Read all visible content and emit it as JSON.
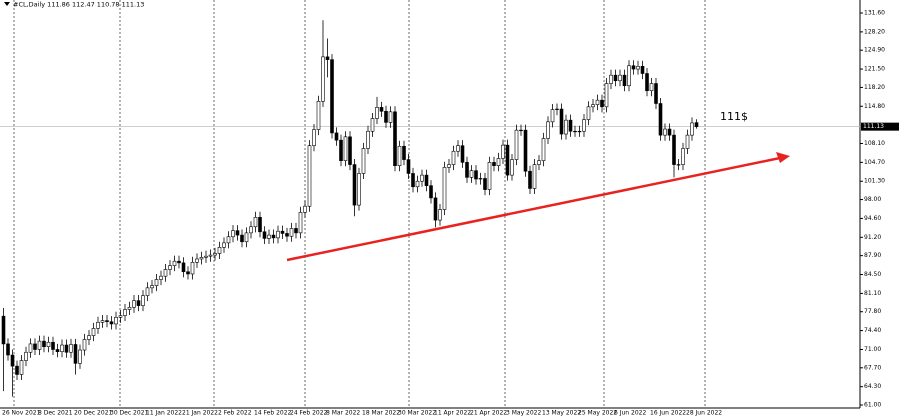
{
  "chart_data": {
    "type": "candlestick",
    "title": "#CL,Daily  111.86 112.47 110.78 111.13",
    "annotation": "111$",
    "last_price": 111.13,
    "color": "#000000",
    "up_fill": "#ffffff",
    "down_fill": "#000000",
    "line_color": "#bdbdbd",
    "annotation_color": "#e8231f",
    "ylim": [
      60.46,
      133.94
    ],
    "yticks": [
      {
        "value": 131.6,
        "label": "131.60"
      },
      {
        "value": 128.2,
        "label": "128.20"
      },
      {
        "value": 124.9,
        "label": "124.90"
      },
      {
        "value": 121.5,
        "label": "121.50"
      },
      {
        "value": 118.2,
        "label": "118.20"
      },
      {
        "value": 114.8,
        "label": "114.80"
      },
      {
        "value": 108.1,
        "label": "108.10"
      },
      {
        "value": 104.7,
        "label": "104.70"
      },
      {
        "value": 101.3,
        "label": "101.30"
      },
      {
        "value": 98,
        "label": "98.00"
      },
      {
        "value": 94.6,
        "label": "94.60"
      },
      {
        "value": 91.2,
        "label": "91.20"
      },
      {
        "value": 87.9,
        "label": "87.90"
      },
      {
        "value": 84.5,
        "label": "84.50"
      },
      {
        "value": 81.1,
        "label": "81.10"
      },
      {
        "value": 77.8,
        "label": "77.80"
      },
      {
        "value": 74.4,
        "label": "74.40"
      },
      {
        "value": 71,
        "label": "71.00"
      },
      {
        "value": 67.7,
        "label": "67.70"
      },
      {
        "value": 64.3,
        "label": "64.30"
      },
      {
        "value": 61,
        "label": "61.00"
      }
    ],
    "categories": [
      "26 Nov 2021",
      null,
      null,
      null,
      null,
      null,
      null,
      null,
      "8 Dec 2021",
      null,
      null,
      null,
      null,
      null,
      null,
      null,
      "20 Dec 2021",
      null,
      null,
      null,
      null,
      null,
      null,
      null,
      "30 Dec 2021",
      null,
      null,
      null,
      null,
      null,
      null,
      null,
      "11 Jan 2022",
      null,
      null,
      null,
      null,
      null,
      null,
      null,
      "21 Jan 2022",
      null,
      null,
      null,
      null,
      null,
      null,
      null,
      "2 Feb 2022",
      null,
      null,
      null,
      null,
      null,
      null,
      null,
      "14 Feb 2022",
      null,
      null,
      null,
      null,
      null,
      null,
      null,
      "24 Feb 2022",
      null,
      null,
      null,
      null,
      null,
      null,
      null,
      "8 Mar 2022",
      null,
      null,
      null,
      null,
      null,
      null,
      null,
      "18 Mar 2022",
      null,
      null,
      null,
      null,
      null,
      null,
      null,
      "30 Mar 2022",
      null,
      null,
      null,
      null,
      null,
      null,
      null,
      "11 Apr 2022",
      null,
      null,
      null,
      null,
      null,
      null,
      null,
      "21 Apr 2022",
      null,
      null,
      null,
      null,
      null,
      null,
      null,
      "3 May 2022",
      null,
      null,
      null,
      null,
      null,
      null,
      null,
      "13 May 2022",
      null,
      null,
      null,
      null,
      null,
      null,
      null,
      "25 May 2022",
      null,
      null,
      null,
      null,
      null,
      null,
      null,
      "6 Jun 2022",
      null,
      null,
      null,
      null,
      null,
      null,
      null,
      "16 Jun 2022",
      null,
      null,
      null,
      null,
      null,
      null,
      null,
      "28 Jun 2022",
      null,
      null
    ],
    "open": [
      77,
      72,
      70,
      68,
      66.5,
      69,
      70.5,
      72,
      71,
      72.5,
      71.5,
      72.3,
      71,
      70.6,
      71.8,
      70.5,
      71.9,
      68.5,
      70.9,
      72.8,
      73.5,
      74.8,
      75.9,
      76.2,
      76,
      75.6,
      76.8,
      77.1,
      78.2,
      78.6,
      79.8,
      78.9,
      80.7,
      82.1,
      82.5,
      83.6,
      84.2,
      85.4,
      86.1,
      86.9,
      86.6,
      85,
      84.6,
      86.7,
      87.3,
      87.6,
      87.8,
      88,
      88.3,
      89.4,
      90.2,
      91.3,
      92.4,
      91.6,
      90.4,
      92,
      93.1,
      94.8,
      92.2,
      91,
      91.6,
      91.1,
      92.3,
      91.9,
      91.4,
      92.8,
      92,
      95.7,
      96.8,
      107.7,
      110.6,
      115.7,
      123.7,
      123.2,
      110,
      108.7,
      105,
      109.3,
      104.3,
      97,
      102.7,
      107.2,
      110.3,
      112.6,
      114.6,
      113.9,
      111.9,
      113.8,
      104.1,
      107.6,
      105.2,
      102.7,
      100.3,
      101.3,
      102.4,
      100.5,
      98.3,
      94.3,
      96.2,
      103.8,
      104.3,
      106.7,
      107.7,
      104.7,
      102,
      103.2,
      101.7,
      101.8,
      99.8,
      104.7,
      104.1,
      105.4,
      107.8,
      102.4,
      105.2,
      110.5,
      110.5,
      103.1,
      100,
      104.3,
      105,
      109,
      112,
      114.2,
      114.3,
      109.8,
      112.3,
      110.3,
      110.3,
      110.3,
      112.4,
      114.7,
      115.1,
      115.9,
      114.7,
      118.9,
      120.4,
      119.4,
      120.4,
      118.5,
      122.1,
      121.5,
      122,
      120.7,
      117.6,
      118.9,
      115.3,
      109.6,
      110.7,
      109.6,
      104.3,
      104.3,
      107.2,
      109.6,
      111.86
    ],
    "high": [
      78.5,
      73,
      71,
      69,
      70,
      71.5,
      73,
      73,
      73.5,
      73.5,
      73.3,
      73.3,
      72,
      72.8,
      72.8,
      72.9,
      72.9,
      71.9,
      73.8,
      74.5,
      75.8,
      76.9,
      77.2,
      77.2,
      77,
      77.8,
      78.1,
      79.2,
      79.6,
      80.8,
      80.8,
      81.7,
      83.1,
      83.5,
      84.6,
      85.2,
      86.4,
      87.1,
      87.9,
      87.9,
      87.6,
      86,
      87.7,
      88.3,
      88.6,
      88.8,
      89,
      89.3,
      90.4,
      91.2,
      92.3,
      93.4,
      93.4,
      92.6,
      93,
      94.1,
      95.8,
      95.8,
      93.2,
      92.6,
      92.6,
      93.3,
      93.3,
      92.9,
      93.8,
      93.8,
      96.7,
      97.8,
      108.7,
      111.6,
      116.7,
      130.3,
      127,
      124.2,
      111,
      109.7,
      110.3,
      110.3,
      105.3,
      103.7,
      108.2,
      111.3,
      113.6,
      116.5,
      115.6,
      114.9,
      114.8,
      114.8,
      108.6,
      108.6,
      106.2,
      103.7,
      102.3,
      103.4,
      103.4,
      101.5,
      99.3,
      97.2,
      104.8,
      105.3,
      107.7,
      108.7,
      108.7,
      105.7,
      104.2,
      104.2,
      102.8,
      102.8,
      105.7,
      105.7,
      106.4,
      108.8,
      108.8,
      106.2,
      111.5,
      111.5,
      111.5,
      104.1,
      105.3,
      106,
      110,
      113,
      115.2,
      115.3,
      115.3,
      113.3,
      113.3,
      111.3,
      111.3,
      113.4,
      115.7,
      116.1,
      116.9,
      116.9,
      119.9,
      121.4,
      121.4,
      121.4,
      121.4,
      123.1,
      123.1,
      123,
      123,
      121.7,
      119.9,
      119.9,
      116.3,
      111.7,
      111.7,
      110.6,
      105.3,
      108.2,
      110.6,
      112.8,
      112.47
    ],
    "low": [
      63.5,
      69,
      62.5,
      65.5,
      65.5,
      68,
      69.5,
      70,
      70,
      70.5,
      70.5,
      70,
      69.6,
      69.6,
      69.5,
      69.5,
      66.5,
      67.5,
      69.9,
      71.8,
      72.5,
      73.8,
      74.9,
      75,
      74.6,
      74.6,
      75.8,
      76.1,
      77.2,
      77.6,
      77.9,
      77.9,
      79.7,
      81.1,
      81.5,
      82.6,
      83.2,
      84.4,
      85.1,
      85.6,
      84,
      83.6,
      83.6,
      85.7,
      86.3,
      86.6,
      86.8,
      87,
      87.3,
      88.4,
      89.2,
      90.3,
      90.6,
      89.4,
      89.4,
      91,
      92.1,
      91.2,
      90,
      90,
      90.1,
      90.1,
      90.9,
      90.4,
      90.4,
      91,
      91,
      94.7,
      95.8,
      106.7,
      109.6,
      114.7,
      120,
      109,
      107.7,
      104,
      104,
      103.3,
      95,
      96,
      101.7,
      106.2,
      109.3,
      111.6,
      112.9,
      110.9,
      110.9,
      103.1,
      103.1,
      104.2,
      101.7,
      99.3,
      99.3,
      100.3,
      99.5,
      97.3,
      93,
      93.3,
      95.2,
      102.8,
      103.3,
      105.7,
      103.7,
      101,
      101,
      100.7,
      100.7,
      98.8,
      98.8,
      103.1,
      103.1,
      104.4,
      101.4,
      101.4,
      104.2,
      109.5,
      102.1,
      99,
      99,
      103.3,
      104,
      108,
      111,
      113.2,
      108.8,
      108.8,
      109.3,
      109.3,
      109.3,
      109.3,
      111.4,
      113.7,
      114.1,
      113.7,
      113.7,
      117.9,
      118.4,
      118.4,
      117.5,
      117.5,
      120.5,
      120.5,
      119.7,
      116.6,
      116.6,
      114.3,
      108.6,
      108.6,
      108.6,
      102,
      103.3,
      103.3,
      106.2,
      108.6,
      110.78
    ],
    "close": [
      72,
      70,
      68,
      66.5,
      69,
      70.5,
      72,
      71,
      72.5,
      71.5,
      72.3,
      71,
      70.6,
      71.8,
      70.5,
      71.9,
      68.5,
      70.9,
      72.8,
      73.5,
      74.8,
      75.9,
      76.2,
      76,
      75.6,
      76.8,
      77.1,
      78.2,
      78.6,
      79.8,
      78.9,
      80.7,
      82.1,
      82.5,
      83.6,
      84.2,
      85.4,
      86.1,
      86.9,
      86.6,
      85,
      84.6,
      86.7,
      87.3,
      87.6,
      87.8,
      88,
      88.3,
      89.4,
      90.2,
      91.3,
      92.4,
      91.6,
      90.4,
      92,
      93.1,
      94.8,
      92.2,
      91,
      91.6,
      91.1,
      92.3,
      91.9,
      91.4,
      92.8,
      92,
      95.7,
      96.8,
      107.7,
      110.6,
      115.7,
      123.7,
      123.2,
      110,
      108.7,
      105,
      109.3,
      104.3,
      97,
      102.7,
      107.2,
      110.3,
      112.6,
      114.6,
      113.9,
      111.9,
      113.8,
      104.1,
      107.6,
      105.2,
      102.7,
      100.3,
      101.3,
      102.4,
      100.5,
      98.3,
      94.3,
      96.2,
      103.8,
      104.3,
      106.7,
      107.7,
      104.7,
      102,
      103.2,
      101.7,
      101.8,
      99.8,
      104.7,
      104.1,
      105.4,
      107.8,
      102.4,
      105.2,
      110.5,
      110.5,
      103.1,
      100,
      104.3,
      105,
      109,
      112,
      114.2,
      114.3,
      109.8,
      112.3,
      110.3,
      110.3,
      110.3,
      112.4,
      114.7,
      115.1,
      115.9,
      114.7,
      118.9,
      120.4,
      119.4,
      120.4,
      118.5,
      122.1,
      121.5,
      122,
      120.7,
      117.6,
      118.9,
      115.3,
      109.6,
      110.7,
      109.6,
      104.3,
      104.3,
      107.2,
      109.6,
      111.8,
      111.13
    ]
  }
}
